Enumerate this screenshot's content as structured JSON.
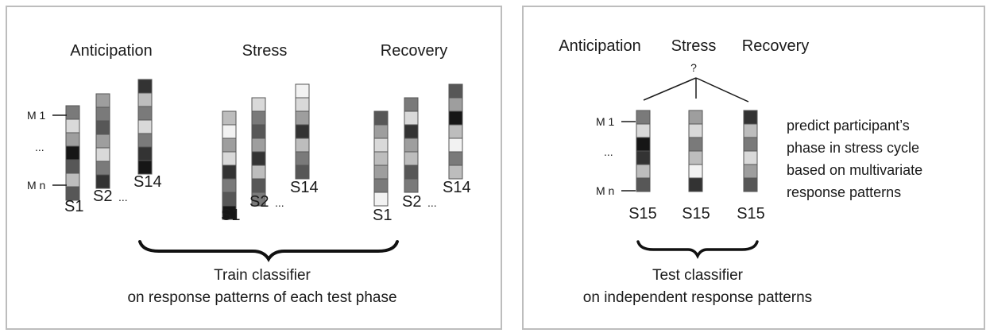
{
  "train_panel": {
    "phases": [
      {
        "label": "Anticipation",
        "subjects": [
          "S1",
          "S2",
          "S14"
        ]
      },
      {
        "label": "Stress",
        "subjects": [
          "S1",
          "S2",
          "S14"
        ]
      },
      {
        "label": "Recovery",
        "subjects": [
          "S1",
          "S2",
          "S14"
        ]
      }
    ],
    "ellipsis": "...",
    "measure_first": "M 1",
    "measure_dots": "...",
    "measure_last": "M n",
    "caption_line1": "Train classifier",
    "caption_line2": "on response patterns of each test phase"
  },
  "test_panel": {
    "phases": [
      "Anticipation",
      "Stress",
      "Recovery"
    ],
    "question": "?",
    "subject": "S15",
    "measure_first": "M 1",
    "measure_dots": "...",
    "measure_last": "M n",
    "side_text": [
      "predict participant’s",
      "phase in stress cycle",
      "based on multivariate",
      "response patterns"
    ],
    "caption_line1": "Test classifier",
    "caption_line2": "on independent response patterns"
  }
}
